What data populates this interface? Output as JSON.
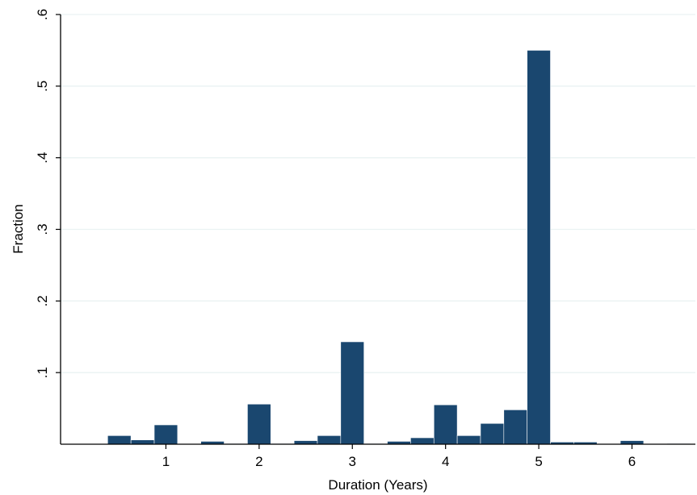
{
  "chart_data": {
    "type": "bar",
    "xlabel": "Duration (Years)",
    "ylabel": "Fraction",
    "xlim": [
      -0.13,
      6.68
    ],
    "ylim": [
      0,
      0.6
    ],
    "x_ticks": [
      {
        "value": 1,
        "label": "1"
      },
      {
        "value": 2,
        "label": "2"
      },
      {
        "value": 3,
        "label": "3"
      },
      {
        "value": 4,
        "label": "4"
      },
      {
        "value": 5,
        "label": "5"
      },
      {
        "value": 6,
        "label": "6"
      }
    ],
    "y_ticks": [
      {
        "value": 0.1,
        "label": ".1"
      },
      {
        "value": 0.2,
        "label": ".2"
      },
      {
        "value": 0.3,
        "label": ".3"
      },
      {
        "value": 0.4,
        "label": ".4"
      },
      {
        "value": 0.5,
        "label": ".5"
      },
      {
        "value": 0.6,
        "label": ".6"
      }
    ],
    "bin_width": 0.25,
    "bins": [
      {
        "x": 0.5,
        "value": 0.012
      },
      {
        "x": 0.75,
        "value": 0.006
      },
      {
        "x": 1.0,
        "value": 0.027
      },
      {
        "x": 1.25,
        "value": 0.0
      },
      {
        "x": 1.5,
        "value": 0.004
      },
      {
        "x": 1.75,
        "value": 0.001
      },
      {
        "x": 2.0,
        "value": 0.056
      },
      {
        "x": 2.25,
        "value": 0.001
      },
      {
        "x": 2.5,
        "value": 0.005
      },
      {
        "x": 2.75,
        "value": 0.012
      },
      {
        "x": 3.0,
        "value": 0.143
      },
      {
        "x": 3.25,
        "value": 0.001
      },
      {
        "x": 3.5,
        "value": 0.004
      },
      {
        "x": 3.75,
        "value": 0.009
      },
      {
        "x": 4.0,
        "value": 0.055
      },
      {
        "x": 4.25,
        "value": 0.012
      },
      {
        "x": 4.5,
        "value": 0.029
      },
      {
        "x": 4.75,
        "value": 0.048
      },
      {
        "x": 5.0,
        "value": 0.55
      },
      {
        "x": 5.25,
        "value": 0.003
      },
      {
        "x": 5.5,
        "value": 0.003
      },
      {
        "x": 5.75,
        "value": 0.0
      },
      {
        "x": 6.0,
        "value": 0.005
      },
      {
        "x": 6.25,
        "value": 0.0
      },
      {
        "x": 6.5,
        "value": 0.001
      }
    ],
    "grid": true,
    "legend": "none",
    "bar_color": "#1a476f",
    "grid_color": "#eaf2f3"
  }
}
